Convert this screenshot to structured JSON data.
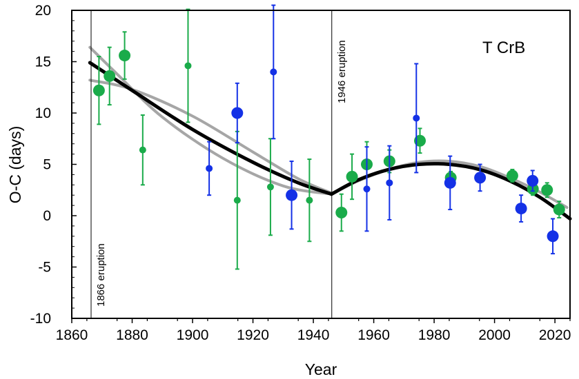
{
  "chart_data": {
    "type": "scatter",
    "title": "T CrB",
    "xlabel": "Year",
    "ylabel": "O-C (days)",
    "xlim": [
      1860,
      2025
    ],
    "ylim": [
      -10,
      20
    ],
    "x_ticks": [
      1860,
      1880,
      1900,
      1920,
      1940,
      1960,
      1980,
      2000,
      2020
    ],
    "y_ticks": [
      -10,
      -5,
      0,
      5,
      10,
      15,
      20
    ],
    "annotations": [
      {
        "label": "1866 eruption",
        "year": 1866.4
      },
      {
        "label": "1946 eruption",
        "year": 1946.1
      }
    ],
    "series": [
      {
        "name": "green",
        "color": "#1aab4a",
        "points": [
          {
            "x": 1869.0,
            "y": 12.2,
            "err": 3.3,
            "size": "large"
          },
          {
            "x": 1872.5,
            "y": 13.6,
            "err": 2.8,
            "size": "large"
          },
          {
            "x": 1877.5,
            "y": 15.6,
            "err": 2.3,
            "size": "large"
          },
          {
            "x": 1883.5,
            "y": 6.4,
            "err": 3.4,
            "size": "small"
          },
          {
            "x": 1898.5,
            "y": 14.6,
            "err": 5.5,
            "size": "small"
          },
          {
            "x": 1914.8,
            "y": 1.5,
            "err": 6.7,
            "size": "small"
          },
          {
            "x": 1925.8,
            "y": 2.8,
            "err": 4.7,
            "size": "small"
          },
          {
            "x": 1938.7,
            "y": 1.5,
            "err": 4.0,
            "size": "small"
          },
          {
            "x": 1949.3,
            "y": 0.3,
            "err": 1.8,
            "size": "large"
          },
          {
            "x": 1952.8,
            "y": 3.8,
            "err": 2.2,
            "size": "large"
          },
          {
            "x": 1957.7,
            "y": 5.0,
            "err": 2.2,
            "size": "large"
          },
          {
            "x": 1965.2,
            "y": 5.3,
            "err": 1.1,
            "size": "large"
          },
          {
            "x": 1975.3,
            "y": 7.3,
            "err": 1.2,
            "size": "large"
          },
          {
            "x": 1985.5,
            "y": 3.7,
            "err": 0.6,
            "size": "large"
          },
          {
            "x": 2005.9,
            "y": 3.9,
            "err": 0.6,
            "size": "large"
          },
          {
            "x": 2012.7,
            "y": 2.6,
            "err": 0.6,
            "size": "large"
          },
          {
            "x": 2017.4,
            "y": 2.5,
            "err": 0.7,
            "size": "large"
          },
          {
            "x": 2021.4,
            "y": 0.6,
            "err": 0.8,
            "size": "large"
          }
        ]
      },
      {
        "name": "blue",
        "color": "#1431e6",
        "points": [
          {
            "x": 1905.5,
            "y": 4.6,
            "err": 2.6,
            "size": "small"
          },
          {
            "x": 1914.8,
            "y": 10.0,
            "err": 2.9,
            "size": "large"
          },
          {
            "x": 1926.8,
            "y": 14.0,
            "err": 6.5,
            "size": "small"
          },
          {
            "x": 1932.8,
            "y": 2.0,
            "err": 3.3,
            "size": "large"
          },
          {
            "x": 1957.7,
            "y": 2.6,
            "err": 4.1,
            "size": "small"
          },
          {
            "x": 1965.2,
            "y": 3.2,
            "err": 3.6,
            "size": "small"
          },
          {
            "x": 1974.1,
            "y": 9.5,
            "err": 5.3,
            "size": "small"
          },
          {
            "x": 1985.3,
            "y": 3.2,
            "err": 2.6,
            "size": "large"
          },
          {
            "x": 1995.2,
            "y": 3.7,
            "err": 1.3,
            "size": "large"
          },
          {
            "x": 2008.8,
            "y": 0.7,
            "err": 1.3,
            "size": "large"
          },
          {
            "x": 2012.6,
            "y": 3.4,
            "err": 1.0,
            "size": "large"
          },
          {
            "x": 2019.3,
            "y": -2.0,
            "err": 1.7,
            "size": "large"
          }
        ]
      }
    ],
    "curves": [
      {
        "name": "fit-alt-upper",
        "color": "#a6a6a6",
        "x": [
          1866,
          1880,
          1900,
          1920,
          1935,
          1946
        ],
        "y": [
          13.2,
          12.3,
          9.7,
          6.2,
          3.6,
          2.2
        ]
      },
      {
        "name": "fit-alt-lower",
        "color": "#a6a6a6",
        "x": [
          1866,
          1875,
          1890,
          1910,
          1930,
          1946
        ],
        "y": [
          16.4,
          13.8,
          9.6,
          5.6,
          2.9,
          2.1
        ]
      },
      {
        "name": "fit-alt-post",
        "color": "#a6a6a6",
        "x": [
          1946,
          1955,
          1965,
          1975,
          1985,
          1995,
          2005,
          2015,
          2024
        ],
        "y": [
          2.1,
          3.4,
          4.5,
          5.2,
          5.3,
          4.8,
          3.7,
          2.3,
          0.8
        ]
      },
      {
        "name": "fit-main-pre",
        "color": "#000000",
        "x": [
          1866,
          1880,
          1900,
          1920,
          1935,
          1946
        ],
        "y": [
          14.9,
          12.2,
          8.4,
          5.2,
          3.2,
          2.1
        ]
      },
      {
        "name": "fit-main-post",
        "color": "#000000",
        "x": [
          1946,
          1955,
          1965,
          1975,
          1985,
          1995,
          2005,
          2015,
          2025
        ],
        "y": [
          2.1,
          3.5,
          4.5,
          5.0,
          5.0,
          4.5,
          3.4,
          1.8,
          -0.3
        ]
      }
    ]
  }
}
